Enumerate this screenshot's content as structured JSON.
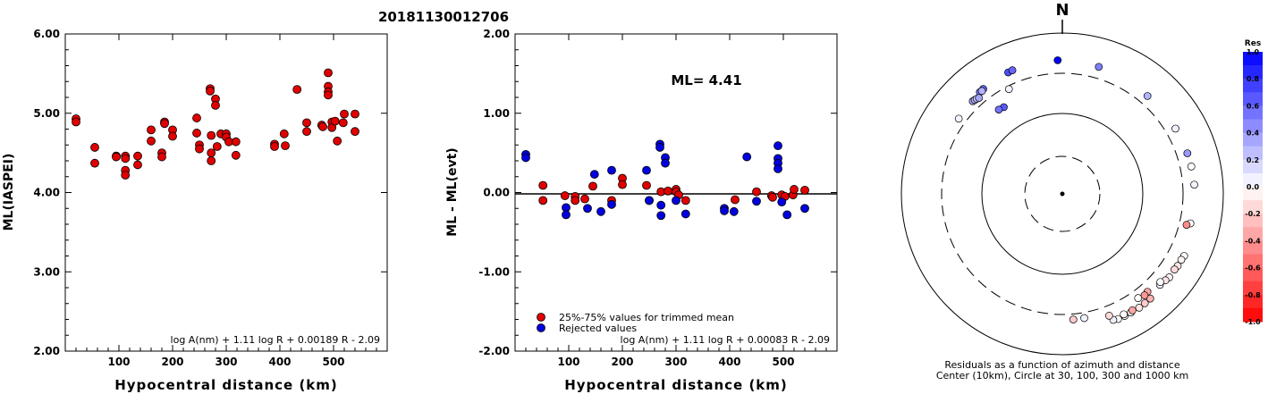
{
  "title": "20181130012706",
  "chart_data": [
    {
      "type": "scatter",
      "xlabel": "Hypocentral distance (km)",
      "ylabel": "ML(IASPEI)",
      "xlim": [
        0,
        600
      ],
      "ylim": [
        2.0,
        6.0
      ],
      "xticks": [
        "100",
        "200",
        "300",
        "400",
        "500"
      ],
      "yticks": [
        "2.00",
        "3.00",
        "4.00",
        "5.00",
        "6.00"
      ],
      "formula": "log A(nm) + 1.11 log R + 0.00189 R - 2.09",
      "series": [
        {
          "color": "#e00000",
          "points": [
            [
              20,
              4.93
            ],
            [
              20,
              4.89
            ],
            [
              55,
              4.57
            ],
            [
              55,
              4.37
            ],
            [
              95,
              4.46
            ],
            [
              95,
              4.45
            ],
            [
              112,
              4.46
            ],
            [
              112,
              4.43
            ],
            [
              112,
              4.28
            ],
            [
              112,
              4.22
            ],
            [
              135,
              4.46
            ],
            [
              135,
              4.35
            ],
            [
              160,
              4.79
            ],
            [
              160,
              4.65
            ],
            [
              180,
              4.5
            ],
            [
              180,
              4.45
            ],
            [
              185,
              4.89
            ],
            [
              185,
              4.87
            ],
            [
              200,
              4.79
            ],
            [
              200,
              4.71
            ],
            [
              245,
              4.94
            ],
            [
              245,
              4.75
            ],
            [
              250,
              4.6
            ],
            [
              250,
              4.55
            ],
            [
              270,
              5.31
            ],
            [
              270,
              5.28
            ],
            [
              272,
              4.72
            ],
            [
              272,
              4.5
            ],
            [
              272,
              4.4
            ],
            [
              280,
              5.18
            ],
            [
              280,
              5.1
            ],
            [
              283,
              4.58
            ],
            [
              290,
              4.74
            ],
            [
              300,
              4.74
            ],
            [
              300,
              4.7
            ],
            [
              305,
              4.64
            ],
            [
              318,
              4.64
            ],
            [
              318,
              4.47
            ],
            [
              390,
              4.61
            ],
            [
              390,
              4.58
            ],
            [
              408,
              4.74
            ],
            [
              410,
              4.59
            ],
            [
              432,
              5.3
            ],
            [
              450,
              4.88
            ],
            [
              450,
              4.77
            ],
            [
              478,
              4.85
            ],
            [
              480,
              4.83
            ],
            [
              490,
              5.51
            ],
            [
              490,
              5.34
            ],
            [
              490,
              5.27
            ],
            [
              490,
              5.23
            ],
            [
              497,
              4.89
            ],
            [
              497,
              4.82
            ],
            [
              503,
              4.9
            ],
            [
              507,
              4.65
            ],
            [
              518,
              4.88
            ],
            [
              520,
              4.99
            ],
            [
              540,
              4.99
            ],
            [
              540,
              4.77
            ]
          ]
        }
      ]
    },
    {
      "type": "scatter",
      "xlabel": "Hypocentral distance (km)",
      "ylabel": "ML - ML(evt)",
      "xlim": [
        0,
        600
      ],
      "ylim": [
        -2.0,
        2.0
      ],
      "xticks": [
        "100",
        "200",
        "300",
        "400",
        "500"
      ],
      "yticks": [
        "-2.00",
        "-1.00",
        "0.00",
        "1.00",
        "2.00"
      ],
      "annotation": "ML= 4.41",
      "formula": "log A(nm) + 1.11 log R + 0.00083 R - 2.09",
      "legend": [
        "25%-75% values for trimmed mean",
        "Rejected values"
      ],
      "series": [
        {
          "name": "25%-75% values for trimmed mean",
          "color": "#e00000",
          "points": [
            [
              52,
              0.09
            ],
            [
              52,
              -0.1
            ],
            [
              93,
              -0.04
            ],
            [
              112,
              -0.05
            ],
            [
              112,
              -0.1
            ],
            [
              130,
              -0.08
            ],
            [
              145,
              0.08
            ],
            [
              180,
              -0.1
            ],
            [
              200,
              0.18
            ],
            [
              200,
              0.1
            ],
            [
              245,
              0.09
            ],
            [
              250,
              -0.1
            ],
            [
              272,
              0.01
            ],
            [
              285,
              0.02
            ],
            [
              300,
              0.04
            ],
            [
              300,
              0.01
            ],
            [
              305,
              -0.03
            ],
            [
              318,
              -0.1
            ],
            [
              410,
              -0.09
            ],
            [
              450,
              0.01
            ],
            [
              478,
              -0.04
            ],
            [
              480,
              -0.06
            ],
            [
              497,
              -0.03
            ],
            [
              503,
              -0.05
            ],
            [
              518,
              -0.03
            ],
            [
              520,
              0.04
            ],
            [
              540,
              0.03
            ]
          ]
        },
        {
          "name": "Rejected values",
          "color": "#0000e0",
          "points": [
            [
              20,
              0.48
            ],
            [
              20,
              0.44
            ],
            [
              95,
              -0.19
            ],
            [
              95,
              -0.28
            ],
            [
              135,
              -0.2
            ],
            [
              148,
              0.23
            ],
            [
              160,
              -0.24
            ],
            [
              180,
              0.28
            ],
            [
              180,
              -0.15
            ],
            [
              245,
              0.28
            ],
            [
              250,
              -0.1
            ],
            [
              270,
              0.61
            ],
            [
              270,
              0.57
            ],
            [
              272,
              -0.16
            ],
            [
              272,
              -0.29
            ],
            [
              280,
              0.44
            ],
            [
              280,
              0.37
            ],
            [
              300,
              -0.1
            ],
            [
              318,
              -0.27
            ],
            [
              390,
              -0.2
            ],
            [
              390,
              -0.23
            ],
            [
              408,
              -0.24
            ],
            [
              432,
              0.45
            ],
            [
              450,
              -0.11
            ],
            [
              490,
              0.59
            ],
            [
              490,
              0.43
            ],
            [
              490,
              0.37
            ],
            [
              490,
              0.3
            ],
            [
              497,
              -0.12
            ],
            [
              507,
              -0.28
            ],
            [
              540,
              -0.2
            ]
          ]
        }
      ]
    },
    {
      "type": "polar-scatter",
      "north_label": "N",
      "caption_1": "Residuals as a function of azimuth and distance",
      "caption_2": "Center (10km), Circle at 30, 100, 300 and 1000 km",
      "colorbar_title": "Res",
      "colorbar_ticks": [
        "1.0",
        "0.8",
        "0.6",
        "0.4",
        "0.2",
        "0.0",
        "-0.2",
        "-0.4",
        "-0.6",
        "-0.8",
        "-1.0"
      ],
      "points_dist_az_res": [
        [
          425,
          -39,
          0.55
        ],
        [
          430,
          -37,
          0.6
        ],
        [
          420,
          -38,
          0.3
        ],
        [
          450,
          -24,
          0.7
        ],
        [
          455,
          -22,
          0.6
        ],
        [
          460,
          -2,
          1.0
        ],
        [
          440,
          16,
          0.5
        ],
        [
          400,
          -44,
          0.35
        ],
        [
          395,
          -43,
          0.3
        ],
        [
          390,
          -42,
          0.2
        ],
        [
          380,
          -41,
          0.35
        ],
        [
          390,
          -54,
          0.05
        ],
        [
          290,
          -27,
          0.05
        ],
        [
          200,
          -34,
          0.65
        ],
        [
          205,
          -37,
          0.55
        ],
        [
          410,
          41,
          0.3
        ],
        [
          420,
          60,
          0.05
        ],
        [
          430,
          72,
          0.4
        ],
        [
          435,
          78,
          0.0
        ],
        [
          440,
          86,
          0.05
        ],
        [
          430,
          103,
          0.0
        ],
        [
          390,
          104,
          -0.45
        ],
        [
          500,
          117,
          0.0
        ],
        [
          490,
          122,
          -0.1
        ],
        [
          480,
          124,
          -0.15
        ],
        [
          485,
          128,
          -0.05
        ],
        [
          470,
          130,
          -0.1
        ],
        [
          455,
          133,
          0.05
        ],
        [
          435,
          132,
          0.0
        ],
        [
          500,
          140,
          -0.3
        ],
        [
          505,
          143,
          -0.2
        ],
        [
          510,
          146,
          -0.1
        ],
        [
          505,
          150,
          0.0
        ],
        [
          505,
          153,
          0.0
        ],
        [
          505,
          156,
          0.0
        ],
        [
          490,
          158,
          0.05
        ],
        [
          480,
          153,
          0.0
        ],
        [
          490,
          149,
          -0.35
        ],
        [
          420,
          159,
          -0.15
        ],
        [
          490,
          119,
          -0.05
        ],
        [
          410,
          139,
          -0.35
        ],
        [
          420,
          141,
          -0.4
        ],
        [
          400,
          144,
          0.0
        ],
        [
          370,
          170,
          0.05
        ],
        [
          370,
          175,
          -0.2
        ]
      ]
    }
  ]
}
